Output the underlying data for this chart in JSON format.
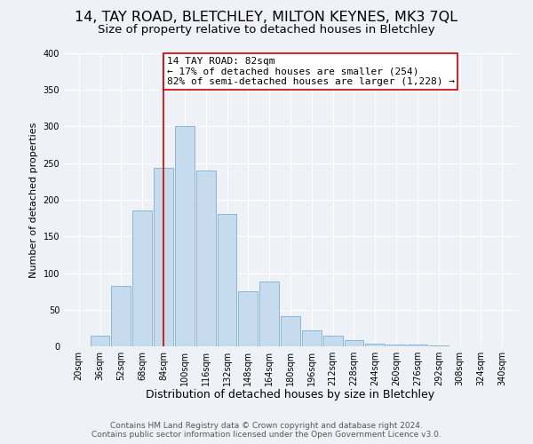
{
  "title": "14, TAY ROAD, BLETCHLEY, MILTON KEYNES, MK3 7QL",
  "subtitle": "Size of property relative to detached houses in Bletchley",
  "xlabel": "Distribution of detached houses by size in Bletchley",
  "ylabel": "Number of detached properties",
  "bin_labels": [
    "20sqm",
    "36sqm",
    "52sqm",
    "68sqm",
    "84sqm",
    "100sqm",
    "116sqm",
    "132sqm",
    "148sqm",
    "164sqm",
    "180sqm",
    "196sqm",
    "212sqm",
    "228sqm",
    "244sqm",
    "260sqm",
    "276sqm",
    "292sqm",
    "308sqm",
    "324sqm",
    "340sqm"
  ],
  "bar_values": [
    0,
    15,
    82,
    186,
    244,
    300,
    240,
    181,
    75,
    88,
    41,
    22,
    14,
    8,
    4,
    3,
    2,
    1,
    0,
    0,
    0
  ],
  "bar_color": "#c6dcee",
  "bar_edge_color": "#7bafd4",
  "vline_x": 4,
  "vline_color": "#cc0000",
  "annotation_text": "14 TAY ROAD: 82sqm\n← 17% of detached houses are smaller (254)\n82% of semi-detached houses are larger (1,228) →",
  "annotation_box_color": "#ffffff",
  "annotation_box_edge": "#cc0000",
  "ylim": [
    0,
    400
  ],
  "yticks": [
    0,
    50,
    100,
    150,
    200,
    250,
    300,
    350,
    400
  ],
  "footer_line1": "Contains HM Land Registry data © Crown copyright and database right 2024.",
  "footer_line2": "Contains public sector information licensed under the Open Government Licence v3.0.",
  "bg_color": "#eef2f7",
  "grid_color": "#ffffff",
  "title_fontsize": 11.5,
  "subtitle_fontsize": 9.5,
  "xlabel_fontsize": 9,
  "ylabel_fontsize": 8,
  "tick_fontsize": 7,
  "annotation_fontsize": 8,
  "footer_fontsize": 6.5
}
